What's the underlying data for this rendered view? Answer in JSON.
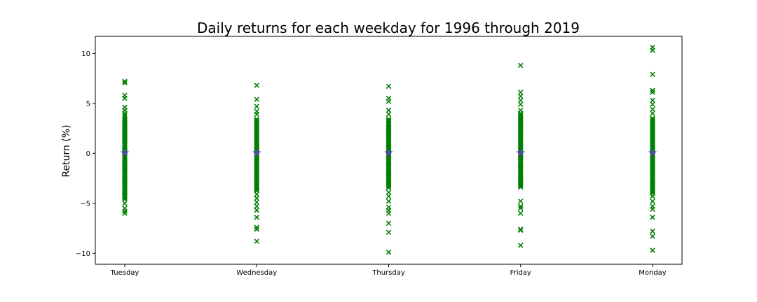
{
  "chart_data": {
    "type": "scatter",
    "title": "Daily returns for each weekday for 1996 through 2019",
    "xlabel": "",
    "ylabel": "Return (%)",
    "categories": [
      "Tuesday",
      "Wednesday",
      "Thursday",
      "Friday",
      "Monday"
    ],
    "yticks": [
      10,
      5,
      0,
      -5,
      -10
    ],
    "ytick_labels": [
      "10",
      "5",
      "0",
      "−5",
      "−10"
    ],
    "ylim": [
      -11.1,
      11.7
    ],
    "grid": false,
    "marker_color": "#008000",
    "mean_marker_color": "#4c4c9a",
    "series": [
      {
        "category": "Tuesday",
        "dense_range": [
          -4.5,
          3.6
        ],
        "outliers": [
          7.2,
          7.05,
          5.8,
          5.5,
          4.6,
          4.3,
          4.0,
          3.8,
          -4.3,
          -4.6,
          -5.0,
          -5.5,
          -5.8,
          -6.0
        ],
        "mean": 0.05
      },
      {
        "category": "Wednesday",
        "dense_range": [
          -3.8,
          3.4
        ],
        "outliers": [
          6.8,
          5.4,
          4.7,
          4.2,
          3.9,
          -4.1,
          -4.5,
          -4.9,
          -5.3,
          -5.7,
          -6.4,
          -7.4,
          -7.6,
          -8.8
        ],
        "mean": 0.05
      },
      {
        "category": "Thursday",
        "dense_range": [
          -3.5,
          3.4
        ],
        "outliers": [
          6.7,
          5.5,
          5.2,
          4.3,
          3.9,
          -3.9,
          -4.3,
          -4.8,
          -5.4,
          -5.7,
          -6.0,
          -7.0,
          -7.9,
          -9.9
        ],
        "mean": 0.05
      },
      {
        "category": "Friday",
        "dense_range": [
          -3.4,
          4.0
        ],
        "outliers": [
          8.8,
          6.1,
          5.7,
          5.3,
          4.9,
          4.3,
          -4.8,
          -5.3,
          -5.5,
          -6.0,
          -7.6,
          -7.7,
          -9.2
        ],
        "mean": 0.05
      },
      {
        "category": "Monday",
        "dense_range": [
          -4.0,
          3.5
        ],
        "outliers": [
          10.6,
          10.3,
          7.9,
          6.3,
          6.1,
          5.3,
          4.9,
          4.4,
          4.0,
          -4.3,
          -4.8,
          -5.3,
          -5.6,
          -6.4,
          -7.8,
          -8.3,
          -9.7
        ],
        "mean": 0.05
      }
    ]
  }
}
